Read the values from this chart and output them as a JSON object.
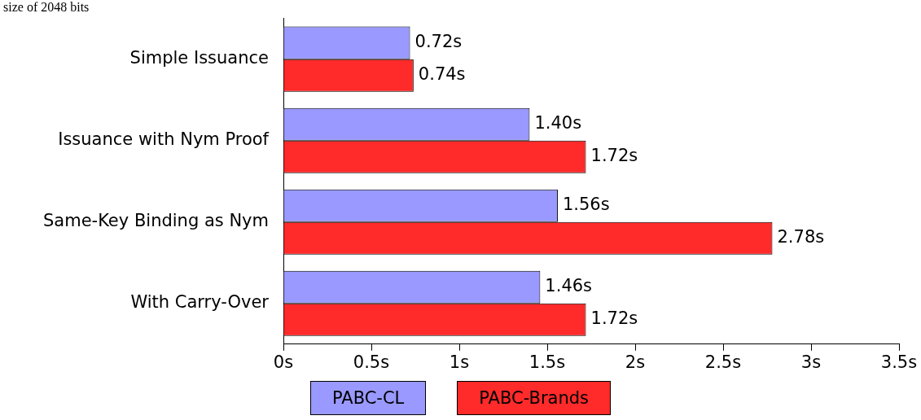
{
  "chart_data": {
    "type": "bar",
    "orientation": "horizontal",
    "categories": [
      "Simple Issuance",
      "Issuance with Nym Proof",
      "Same-Key Binding as Nym",
      "With Carry-Over"
    ],
    "series": [
      {
        "name": "PABC-CL",
        "color": "#9999ff",
        "values": [
          0.72,
          1.4,
          1.56,
          1.46
        ],
        "value_labels": [
          "0.72s",
          "1.40s",
          "1.56s",
          "1.46s"
        ]
      },
      {
        "name": "PABC-Brands",
        "color": "#ff2a2a",
        "values": [
          0.74,
          1.72,
          2.78,
          1.72
        ],
        "value_labels": [
          "0.74s",
          "1.72s",
          "2.78s",
          "1.72s"
        ]
      }
    ],
    "xlim": [
      0,
      3.5
    ],
    "xticks": [
      {
        "value": 0,
        "label": "0s"
      },
      {
        "value": 0.5,
        "label": "0.5s"
      },
      {
        "value": 1,
        "label": "1s"
      },
      {
        "value": 1.5,
        "label": "1.5s"
      },
      {
        "value": 2,
        "label": "2s"
      },
      {
        "value": 2.5,
        "label": "2.5s"
      },
      {
        "value": 3,
        "label": "3s"
      },
      {
        "value": 3.5,
        "label": "3.5s"
      }
    ],
    "grid": false,
    "legend": "bottom",
    "annotations": [
      "size of 2048 bits"
    ]
  }
}
